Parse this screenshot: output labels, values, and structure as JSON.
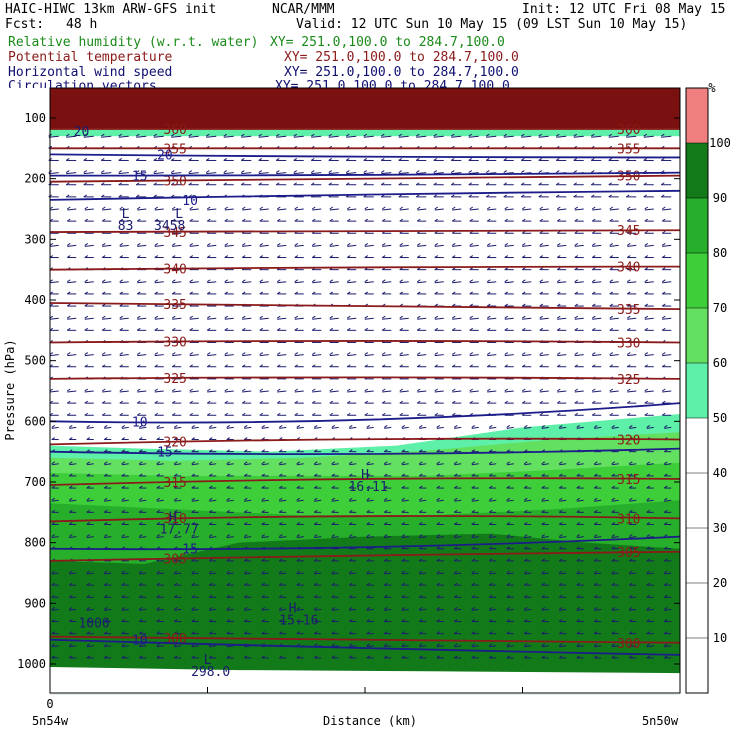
{
  "header": {
    "model": "HAIC-HIWC 13km ARW-GFS init",
    "org": "NCAR/MMM",
    "init": "Init: 12 UTC Fri 08 May 15",
    "fcst_label": "Fcst:",
    "fcst_value": "48 h",
    "valid": "Valid: 12 UTC Sun 10 May 15 (09 LST Sun 10 May 15)"
  },
  "legend": [
    {
      "name": "Relative humidity (w.r.t. water)",
      "range": "XY= 251.0,100.0 to 284.7,100.0",
      "color": "#1a8a1a"
    },
    {
      "name": "Potential temperature",
      "range": "XY= 251.0,100.0 to 284.7,100.0",
      "color": "#8b1a1a"
    },
    {
      "name": "Horizontal wind speed",
      "range": "XY= 251.0,100.0 to 284.7,100.0",
      "color": "#101070"
    },
    {
      "name": "Circulation vectors",
      "range": "XY= 251.0,100.0 to 284.7,100.0",
      "color": "#101070"
    }
  ],
  "chart_data": {
    "type": "cross-section",
    "xlabel": "Distance (km)",
    "ylabel": "Pressure (hPa)",
    "x_ticks": [
      "0"
    ],
    "x_end_labels": [
      "5n54w",
      "5n50w"
    ],
    "y_ticks": [
      100,
      200,
      300,
      400,
      500,
      600,
      700,
      800,
      900,
      1000
    ],
    "ylim": [
      1050,
      80
    ],
    "colorbar": {
      "unit": "%",
      "ticks": [
        10,
        20,
        30,
        40,
        50,
        60,
        70,
        80,
        90,
        100
      ],
      "bands": [
        {
          "from": 50,
          "to": 60,
          "color": "#5ef0a8"
        },
        {
          "from": 60,
          "to": 70,
          "color": "#63e060"
        },
        {
          "from": 70,
          "to": 80,
          "color": "#3ece3a"
        },
        {
          "from": 80,
          "to": 90,
          "color": "#27ae2a"
        },
        {
          "from": 90,
          "to": 100,
          "color": "#137a1a"
        },
        {
          "from": 100,
          "to": 110,
          "color": "#f08080"
        }
      ]
    },
    "theta_contours": [
      {
        "label": "300",
        "p": [
          955,
          960,
          965
        ]
      },
      {
        "label": "305",
        "p": [
          830,
          820,
          815
        ]
      },
      {
        "label": "310",
        "p": [
          765,
          750,
          760
        ]
      },
      {
        "label": "315",
        "p": [
          705,
          690,
          695
        ]
      },
      {
        "label": "320",
        "p": [
          638,
          625,
          630
        ]
      },
      {
        "label": "325",
        "p": [
          530,
          525,
          530
        ]
      },
      {
        "label": "330",
        "p": [
          470,
          465,
          470
        ]
      },
      {
        "label": "335",
        "p": [
          405,
          410,
          415
        ]
      },
      {
        "label": "340",
        "p": [
          350,
          345,
          345
        ]
      },
      {
        "label": "345",
        "p": [
          288,
          288,
          285
        ]
      },
      {
        "label": "350",
        "p": [
          205,
          200,
          195
        ]
      },
      {
        "label": "355",
        "p": [
          150,
          150,
          150
        ]
      },
      {
        "label": "360",
        "p": [
          118,
          118,
          118
        ]
      }
    ],
    "wind_contours": [
      {
        "label": "10",
        "p": [
          600,
          610,
          570
        ]
      },
      {
        "label": "15",
        "p": [
          650,
          660,
          645
        ]
      },
      {
        "label": "10",
        "p": [
          235,
          225,
          220
        ]
      },
      {
        "label": "15",
        "p": [
          195,
          195,
          190
        ]
      },
      {
        "label": "20",
        "p": [
          160,
          165,
          165
        ]
      },
      {
        "label": "15",
        "p": [
          810,
          815,
          790
        ]
      },
      {
        "label": "10",
        "p": [
          960,
          975,
          985
        ]
      }
    ],
    "annotations": [
      {
        "text": "L",
        "x": 0.12,
        "p": 265
      },
      {
        "text": "83",
        "x": 0.12,
        "p": 285
      },
      {
        "text": "L",
        "x": 0.205,
        "p": 265
      },
      {
        "text": "3458",
        "x": 0.19,
        "p": 285
      },
      {
        "text": "H",
        "x": 0.5,
        "p": 695
      },
      {
        "text": "16.11",
        "x": 0.505,
        "p": 715
      },
      {
        "text": "H",
        "x": 0.195,
        "p": 765
      },
      {
        "text": "17.77",
        "x": 0.205,
        "p": 785
      },
      {
        "text": "H",
        "x": 0.385,
        "p": 915
      },
      {
        "text": "15.16",
        "x": 0.395,
        "p": 935
      },
      {
        "text": "L",
        "x": 0.25,
        "p": 1000
      },
      {
        "text": "298.0",
        "x": 0.255,
        "p": 1020
      },
      {
        "text": "1000",
        "x": 0.07,
        "p": 940
      },
      {
        "text": "20",
        "x": 0.05,
        "p": 130
      }
    ]
  }
}
